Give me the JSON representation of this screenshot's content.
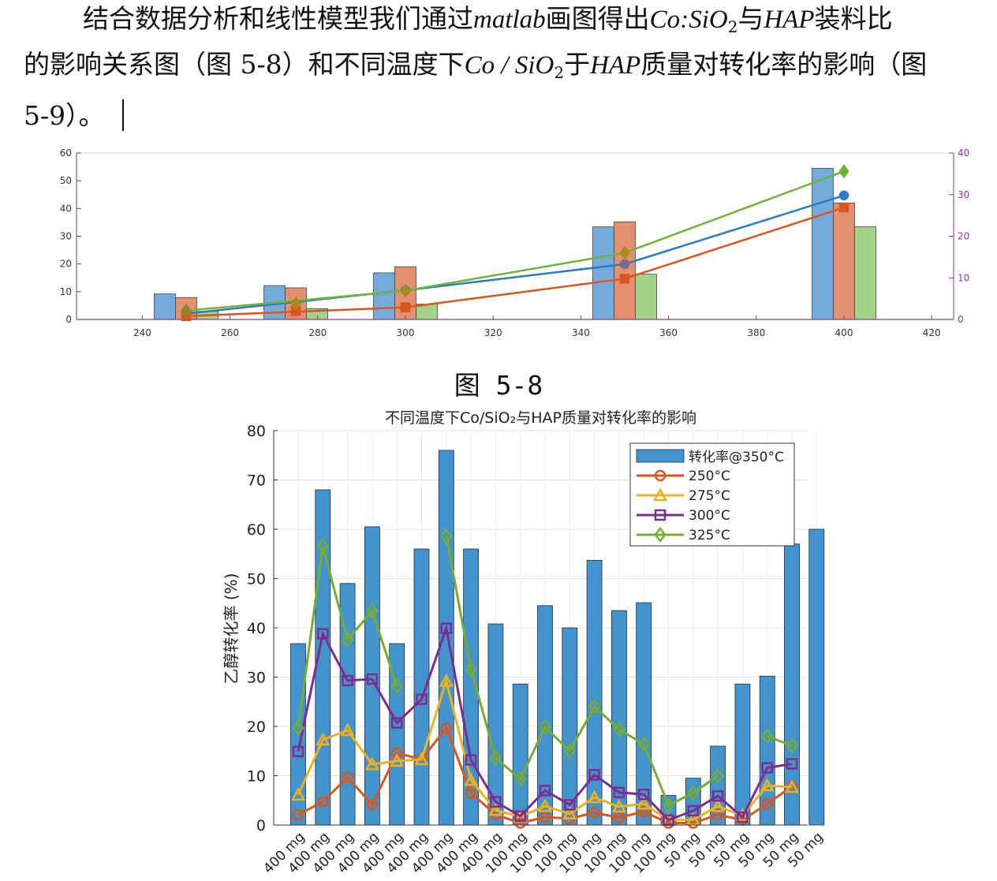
{
  "text": {
    "p1_a": "结合数据分析和线性模型我们通过",
    "p1_b": "matlab",
    "p1_c": "画图得出",
    "p1_d": "Co",
    "p1_e": ":",
    "p1_f": "SiO",
    "p1_g": "2",
    "p1_h": "与",
    "p1_i": "HAP",
    "p1_j": "装料比",
    "p2_a": "的影响关系图（图 5-8）和不同温度下",
    "p2_b": "Co / SiO",
    "p2_c": "2",
    "p2_d": "于",
    "p2_e": "HAP",
    "p2_f": "质量对转化率的影响（图",
    "p3_a": "5-9）。",
    "caption1": "图 5-8"
  },
  "chart_data": [
    {
      "type": "bar",
      "title": "",
      "x_ticks": [
        240,
        260,
        280,
        300,
        320,
        340,
        360,
        380,
        400,
        420
      ],
      "xlim": [
        225,
        425
      ],
      "ylim_left": [
        0,
        60
      ],
      "yticks_left": [
        0,
        10,
        20,
        30,
        40,
        50,
        60
      ],
      "ylim_right": [
        0,
        40
      ],
      "yticks_right": [
        0,
        10,
        20,
        30,
        40
      ],
      "grid": false,
      "temperatures": [
        250,
        275,
        300,
        350,
        400
      ],
      "bar_series": [
        {
          "color": "#73acdc",
          "values": [
            9.2,
            12.2,
            16.8,
            33.4,
            54.5
          ]
        },
        {
          "color": "#e2906f",
          "values": [
            7.9,
            11.4,
            19.0,
            35.2,
            42.0
          ]
        },
        {
          "color": "#a3d38a",
          "values": [
            2.9,
            3.9,
            5.5,
            16.3,
            33.4
          ]
        }
      ],
      "line_series": [
        {
          "color": "#2c7bc4",
          "marker": "circle",
          "x": [
            250,
            300,
            350,
            400
          ],
          "y": [
            1.4,
            7.0,
            13.3,
            29.8
          ]
        },
        {
          "color": "#d9571e",
          "marker": "square",
          "x": [
            250,
            300,
            350,
            400
          ],
          "y": [
            0.8,
            2.9,
            9.8,
            26.9
          ]
        },
        {
          "color": "#6fb33b",
          "marker": "diamond",
          "x": [
            250,
            300,
            350,
            400
          ],
          "y": [
            2.1,
            6.9,
            16.0,
            35.6
          ]
        }
      ],
      "point_markers": [
        {
          "x": 275,
          "y": 2.0,
          "color": "#d9571e",
          "marker": "square"
        },
        {
          "x": 275,
          "y": 3.8,
          "color": "#aa8a18",
          "marker": "diamond"
        },
        {
          "x": 250,
          "y": 2.1,
          "color": "#8a8a20",
          "marker": "diamond"
        },
        {
          "x": 300,
          "y": 6.9,
          "color": "#aa8a18",
          "marker": "diamond"
        },
        {
          "x": 350,
          "y": 13.3,
          "color": "#7b6b8a",
          "marker": "circle"
        },
        {
          "x": 350,
          "y": 16.0,
          "color": "#aa8a18",
          "marker": "diamond"
        }
      ]
    },
    {
      "type": "bar",
      "title": "不同温度下Co/SiO₂与HAP质量对转化率的影响",
      "ylabel": "乙醇转化率 (%)",
      "ylim": [
        0,
        80
      ],
      "yticks": [
        0,
        10,
        20,
        30,
        40,
        50,
        60,
        70,
        80
      ],
      "grid": true,
      "legend_position": "top-right",
      "categories": [
        "400 mg",
        "400 mg",
        "400 mg",
        "400 mg",
        "400 mg",
        "400 mg",
        "400 mg",
        "400 mg",
        "400 mg",
        "100 mg",
        "100 mg",
        "100 mg",
        "100 mg",
        "100 mg",
        "100 mg",
        "100 mg",
        "50 mg",
        "50 mg",
        "50 mg",
        "50 mg",
        "50 mg",
        "50 mg"
      ],
      "bar_series": {
        "name": "转化率@350°C",
        "color": "#4393cf",
        "values": [
          36.8,
          68.0,
          49.0,
          60.5,
          36.8,
          56.0,
          76.0,
          56.0,
          40.8,
          28.6,
          44.5,
          40.0,
          53.7,
          43.5,
          45.1,
          6.0,
          9.5,
          16.0,
          28.6,
          30.2,
          57.0,
          60.0
        ]
      },
      "line_series": [
        {
          "name": "250°C",
          "color": "#d9571e",
          "marker": "circle",
          "values": [
            2.1,
            4.7,
            9.7,
            4.1,
            14.6,
            13.3,
            19.7,
            6.5,
            2.1,
            0.4,
            1.6,
            1.3,
            2.5,
            1.5,
            2.7,
            0.4,
            0.4,
            2.1,
            1.0,
            4.3,
            7.8,
            null
          ]
        },
        {
          "name": "275°C",
          "color": "#edb11f",
          "marker": "triangle",
          "values": [
            6.1,
            17.3,
            19.2,
            12.3,
            13.0,
            13.3,
            29.2,
            9.1,
            3.0,
            1.7,
            3.8,
            2.3,
            5.6,
            3.7,
            4.3,
            1.0,
            1.1,
            3.8,
            1.9,
            8.0,
            7.7,
            null
          ]
        },
        {
          "name": "300°C",
          "color": "#7d2d8f",
          "marker": "square",
          "values": [
            14.9,
            38.8,
            29.3,
            29.6,
            20.7,
            25.5,
            39.9,
            13.2,
            4.7,
            1.8,
            7.0,
            4.1,
            10.2,
            6.6,
            6.2,
            1.0,
            2.9,
            5.9,
            1.6,
            11.6,
            12.4,
            null
          ]
        },
        {
          "name": "325°C",
          "color": "#77ac30",
          "marker": "diamond",
          "values": [
            19.7,
            56.5,
            37.6,
            43.4,
            28.2,
            null,
            58.6,
            31.6,
            13.6,
            9.3,
            19.9,
            15.0,
            24.0,
            19.4,
            16.4,
            4.0,
            6.5,
            10.0,
            null,
            18.0,
            16.1,
            null
          ]
        }
      ]
    }
  ]
}
